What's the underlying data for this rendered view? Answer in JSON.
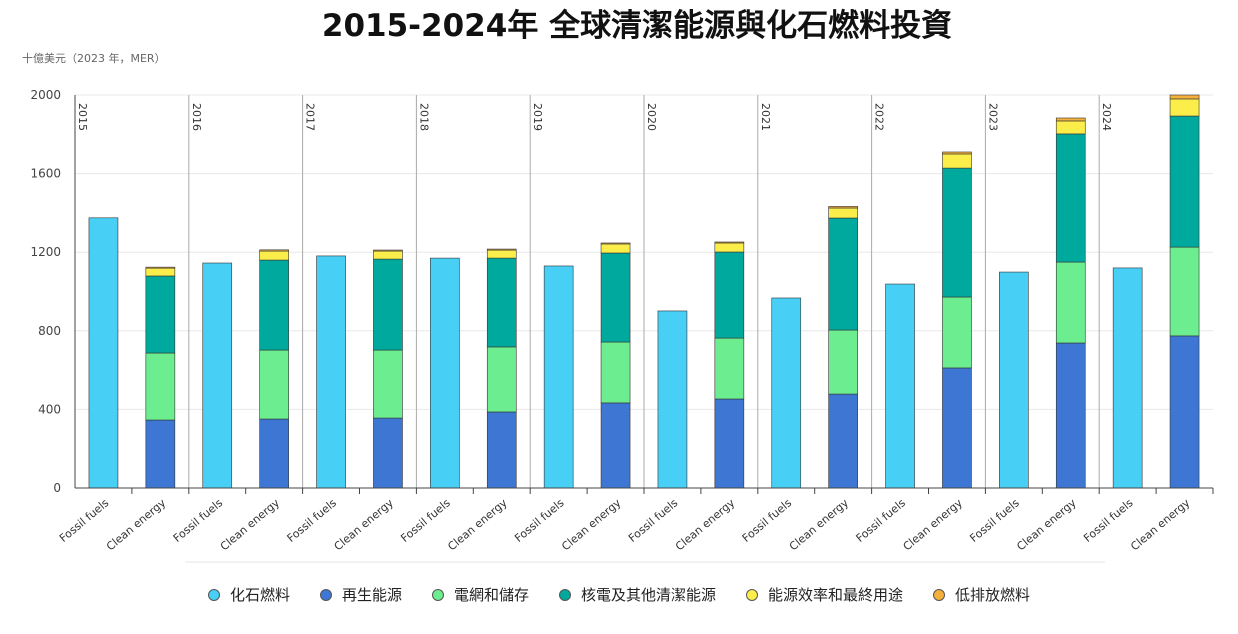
{
  "chart_data": {
    "type": "stacked_bar",
    "title": "2015-2024年 全球清潔能源與化石燃料投資",
    "y_axis_label": "十億美元（2023 年，MER）",
    "groups": [
      "2015",
      "2016",
      "2017",
      "2018",
      "2019",
      "2020",
      "2021",
      "2022",
      "2023",
      "2024"
    ],
    "categories": [
      "Fossil fuels",
      "Clean energy",
      "Fossil fuels",
      "Clean energy",
      "Fossil fuels",
      "Clean energy",
      "Fossil fuels",
      "Clean energy",
      "Fossil fuels",
      "Clean energy",
      "Fossil fuels",
      "Clean energy",
      "Fossil fuels",
      "Clean energy",
      "Fossil fuels",
      "Clean energy",
      "Fossil fuels",
      "Clean energy",
      "Fossil fuels",
      "Clean energy"
    ],
    "series": [
      {
        "name": "化石燃料",
        "color": "#48cff5",
        "values": [
          1375,
          null,
          1145,
          null,
          1181,
          null,
          1170,
          null,
          1130,
          null,
          901,
          null,
          967,
          null,
          1038,
          null,
          1099,
          null,
          1120,
          null
        ]
      },
      {
        "name": "再生能源",
        "color": "#3d77d3",
        "values": [
          null,
          346,
          null,
          351,
          null,
          356,
          null,
          387,
          null,
          433,
          null,
          453,
          null,
          478,
          null,
          611,
          null,
          738,
          null,
          774
        ]
      },
      {
        "name": "電網和儲存",
        "color": "#6ced8f",
        "values": [
          null,
          341,
          null,
          351,
          null,
          346,
          null,
          331,
          null,
          310,
          null,
          310,
          null,
          326,
          null,
          361,
          null,
          412,
          null,
          452
        ]
      },
      {
        "name": "核電及其他清潔能源",
        "color": "#00a99d",
        "values": [
          null,
          392,
          null,
          458,
          null,
          463,
          null,
          452,
          null,
          453,
          null,
          438,
          null,
          570,
          null,
          656,
          null,
          652,
          null,
          667
        ]
      },
      {
        "name": "能源效率和最終用途",
        "color": "#fcee4a",
        "values": [
          null,
          40,
          null,
          46,
          null,
          41,
          null,
          41,
          null,
          46,
          null,
          46,
          null,
          51,
          null,
          72,
          null,
          66,
          null,
          87
        ]
      },
      {
        "name": "低排放燃料",
        "color": "#f4b03c",
        "values": [
          null,
          5,
          null,
          6,
          null,
          5,
          null,
          5,
          null,
          5,
          null,
          5,
          null,
          8,
          null,
          10,
          null,
          15,
          null,
          20
        ]
      }
    ],
    "ylim": [
      0,
      2000
    ],
    "yticks": [
      0,
      400,
      800,
      1200,
      1600,
      2000
    ],
    "grid": true
  }
}
